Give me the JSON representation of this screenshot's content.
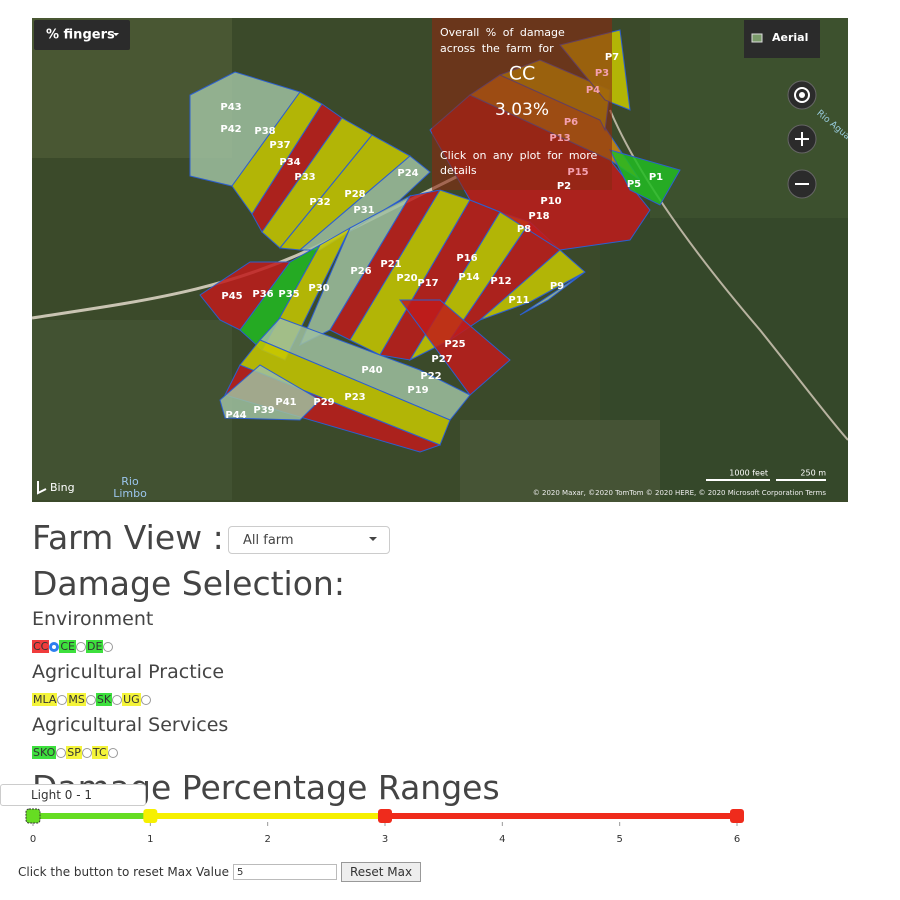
{
  "map": {
    "dropdown": "% fingers",
    "layer_button": "Aerial",
    "overlay": {
      "line1": "Overall % of damage",
      "line2": "across the farm for",
      "selection": "CC",
      "value": "3.03%",
      "hint1": "Click on any plot for more",
      "hint2": "details"
    },
    "plots": [
      "P1",
      "P2",
      "P3",
      "P4",
      "P5",
      "P6",
      "P7",
      "P8",
      "P9",
      "P10",
      "P11",
      "P12",
      "P13",
      "P14",
      "P15",
      "P16",
      "P17",
      "P18",
      "P19",
      "P20",
      "P21",
      "P22",
      "P23",
      "P24",
      "P25",
      "P26",
      "P27",
      "P28",
      "P29",
      "P30",
      "P31",
      "P32",
      "P33",
      "P34",
      "P35",
      "P36",
      "P37",
      "P38",
      "P39",
      "P40",
      "P41",
      "P42",
      "P43",
      "P44",
      "P45"
    ],
    "place_label": "Rio Aguas Ga",
    "bing": "Bing",
    "river": [
      "Rio",
      "Limbo"
    ],
    "scale": [
      "1000 feet",
      "250 m"
    ],
    "attribution": "© 2020 Maxar, ©2020 TomTom © 2020 HERE, © 2020 Microsoft Corporation  Terms"
  },
  "farm_view": {
    "label": "Farm View :",
    "select": "All farm"
  },
  "damage_selection": {
    "title": "Damage Selection:",
    "groups": [
      {
        "name": "Environment",
        "options": [
          {
            "label": "CC",
            "color": "#f03c3c",
            "selected": true
          },
          {
            "label": "CE",
            "color": "#3de03d"
          },
          {
            "label": "DE",
            "color": "#3de03d"
          }
        ]
      },
      {
        "name": "Agricultural Practice",
        "options": [
          {
            "label": "MLA",
            "color": "#f4f43a"
          },
          {
            "label": "MS",
            "color": "#f4f43a"
          },
          {
            "label": "SK",
            "color": "#3de03d"
          },
          {
            "label": "UG",
            "color": "#f4f43a"
          }
        ]
      },
      {
        "name": "Agricultural Services",
        "options": [
          {
            "label": "SKO",
            "color": "#3de03d"
          },
          {
            "label": "SP",
            "color": "#f4f43a"
          },
          {
            "label": "TC",
            "color": "#f4f43a"
          }
        ]
      }
    ]
  },
  "ranges": {
    "title": "Damage Percentage Ranges",
    "tooltip": "Light 0 - 1",
    "slider": {
      "xlim": [
        0,
        6
      ],
      "xticks": [
        0,
        1,
        2,
        3,
        4,
        5,
        6
      ],
      "handles": [
        0,
        1,
        3,
        6
      ],
      "colors": [
        "#66dd22",
        "#f6f000",
        "#ef2b1c"
      ]
    },
    "reset_text": "Click the button to reset Max Value",
    "input": "5",
    "button": "Reset Max"
  }
}
